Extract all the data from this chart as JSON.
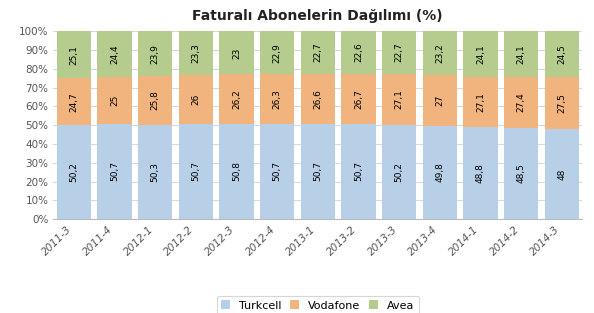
{
  "title": "Faturalı Abonelerin Dağılımı (%)",
  "categories": [
    "2011-3",
    "2011-4",
    "2012-1",
    "2012-2",
    "2012-3",
    "2012-4",
    "2013-1",
    "2013-2",
    "2013-3",
    "2013-4",
    "2014-1",
    "2014-2",
    "2014-3"
  ],
  "turkcell": [
    50.2,
    50.7,
    50.3,
    50.7,
    50.8,
    50.7,
    50.7,
    50.7,
    50.2,
    49.8,
    48.8,
    48.5,
    48.0
  ],
  "vodafone": [
    24.7,
    25.0,
    25.8,
    26.0,
    26.2,
    26.3,
    26.6,
    26.7,
    27.1,
    27.0,
    27.1,
    27.4,
    27.5
  ],
  "avea": [
    25.1,
    24.4,
    23.9,
    23.3,
    23.0,
    22.9,
    22.7,
    22.6,
    22.7,
    23.2,
    24.1,
    24.1,
    24.5
  ],
  "turkcell_labels": [
    "50,2",
    "50,7",
    "50,3",
    "50,7",
    "50,8",
    "50,7",
    "50,7",
    "50,7",
    "50,2",
    "49,8",
    "48,8",
    "48,5",
    "48"
  ],
  "vodafone_labels": [
    "24,7",
    "25",
    "25,8",
    "26",
    "26,2",
    "26,3",
    "26,6",
    "26,7",
    "27,1",
    "27",
    "27,1",
    "27,4",
    "27,5"
  ],
  "avea_labels": [
    "25,1",
    "24,4",
    "23,9",
    "23,3",
    "23",
    "22,9",
    "22,7",
    "22,6",
    "22,7",
    "23,2",
    "24,1",
    "24,1",
    "24,5"
  ],
  "turkcell_color": "#b8cfe8",
  "vodafone_color": "#f2b47e",
  "avea_color": "#b5cc8e",
  "bar_width": 0.85,
  "ylim": [
    0,
    100
  ],
  "ytick_labels": [
    "0%",
    "10%",
    "20%",
    "30%",
    "40%",
    "50%",
    "60%",
    "70%",
    "80%",
    "90%",
    "100%"
  ],
  "ytick_values": [
    0,
    10,
    20,
    30,
    40,
    50,
    60,
    70,
    80,
    90,
    100
  ],
  "title_fontsize": 10,
  "label_fontsize": 6.5,
  "tick_fontsize": 7.5,
  "legend_fontsize": 8,
  "background_color": "#ffffff",
  "grid_color": "#d9d9d9"
}
